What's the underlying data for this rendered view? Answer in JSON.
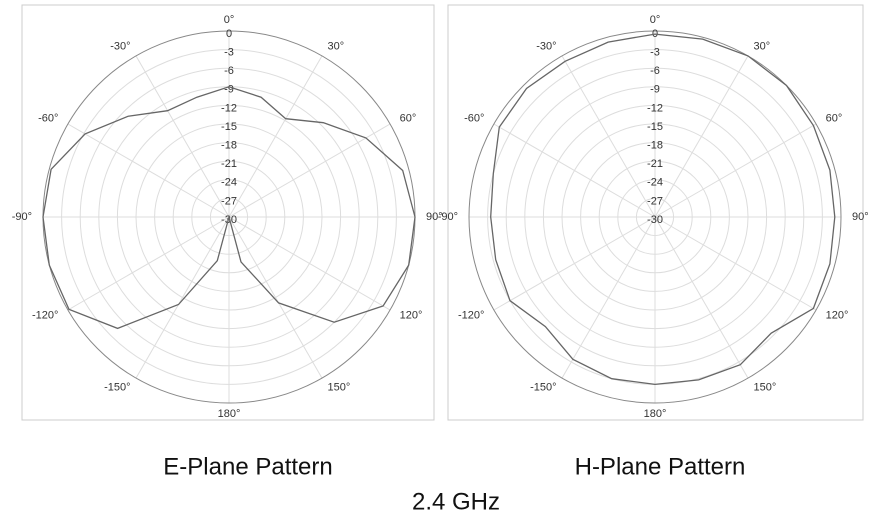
{
  "chart_data": [
    {
      "type": "polar",
      "title": "E-Plane Pattern",
      "color": "#666666",
      "angles": [
        -180,
        -165,
        -150,
        -135,
        -120,
        -105,
        -90,
        -75,
        -60,
        -45,
        -30,
        -15,
        0,
        15,
        30,
        45,
        60,
        75,
        90,
        105,
        120,
        135,
        150,
        165
      ],
      "values": [
        -30,
        -22.7,
        -13.7,
        -4.6,
        -0.2,
        0,
        0,
        -0.3,
        -3.2,
        -7,
        -10.2,
        -10,
        -9,
        -10,
        -11.7,
        -8.5,
        -4.5,
        -1,
        0,
        0,
        -1.3,
        -6,
        -14,
        -22.5
      ],
      "rlim": [
        -30,
        0
      ],
      "rticks": [
        0,
        -3,
        -6,
        -9,
        -12,
        -15,
        -18,
        -21,
        -24,
        -27,
        -30
      ],
      "angle_ticks": [
        {
          "value": 0,
          "label": "0°"
        },
        {
          "value": 30,
          "label": "30°"
        },
        {
          "value": 60,
          "label": "60°"
        },
        {
          "value": 90,
          "label": "90°"
        },
        {
          "value": 120,
          "label": "120°"
        },
        {
          "value": 150,
          "label": "150°"
        },
        {
          "value": 180,
          "label": "180°"
        },
        {
          "value": -150,
          "label": "-150°"
        },
        {
          "value": -120,
          "label": "-120°"
        },
        {
          "value": -90,
          "label": "-90°"
        },
        {
          "value": -60,
          "label": "-60°"
        },
        {
          "value": -30,
          "label": "-30°"
        }
      ],
      "grid": true
    },
    {
      "type": "polar",
      "title": "H-Plane Pattern",
      "color": "#666666",
      "angles": [
        -180,
        -165,
        -150,
        -135,
        -120,
        -105,
        -90,
        -75,
        -60,
        -45,
        -30,
        -15,
        0,
        15,
        30,
        45,
        60,
        75,
        90,
        105,
        120,
        135,
        150,
        165
      ],
      "values": [
        -3,
        -3,
        -3.5,
        -5,
        -3,
        -3.4,
        -3.5,
        -3,
        -1,
        -0.7,
        -1,
        -0.8,
        -0.5,
        -0.3,
        0,
        0,
        -0.5,
        -0.8,
        -1,
        -0.8,
        -0.5,
        -3.5,
        -2.5,
        -2.8
      ],
      "rlim": [
        -30,
        0
      ],
      "rticks": [
        0,
        -3,
        -6,
        -9,
        -12,
        -15,
        -18,
        -21,
        -24,
        -27,
        -30
      ],
      "angle_ticks": [
        {
          "value": 0,
          "label": "0°"
        },
        {
          "value": 30,
          "label": "30°"
        },
        {
          "value": 60,
          "label": "60°"
        },
        {
          "value": 90,
          "label": "90°"
        },
        {
          "value": 120,
          "label": "120°"
        },
        {
          "value": 150,
          "label": "150°"
        },
        {
          "value": 180,
          "label": "180°"
        },
        {
          "value": -150,
          "label": "-150°"
        },
        {
          "value": -120,
          "label": "-120°"
        },
        {
          "value": -90,
          "label": "-90°"
        },
        {
          "value": -60,
          "label": "-60°"
        },
        {
          "value": -30,
          "label": "-30°"
        }
      ],
      "grid": true
    }
  ],
  "caption": "2.4 GHz"
}
